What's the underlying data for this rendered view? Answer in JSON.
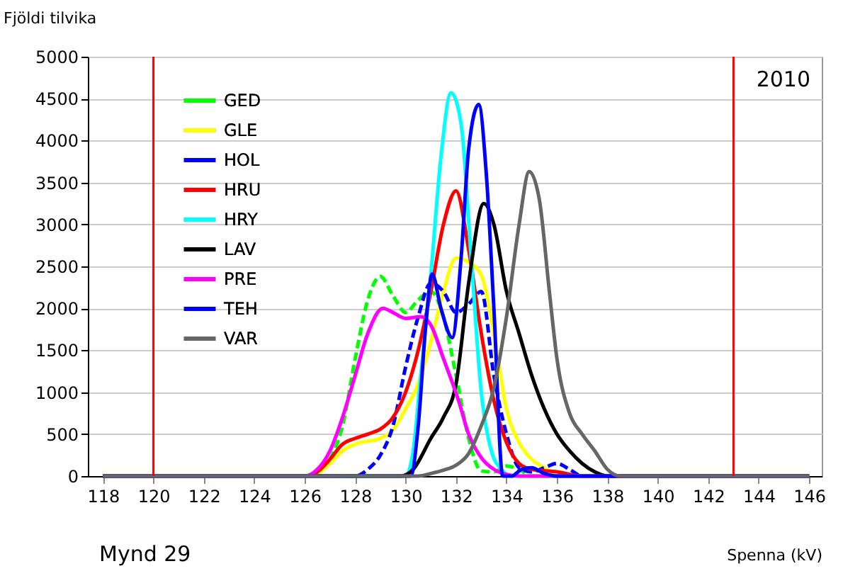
{
  "chart_data": {
    "type": "line",
    "xlabel": "Spenna (kV)",
    "ylabel": "Fjöldi tilvika",
    "xlim": [
      117.4,
      146.5
    ],
    "xticks": [
      118,
      120,
      122,
      124,
      126,
      128,
      130,
      132,
      134,
      136,
      138,
      140,
      142,
      144,
      146
    ],
    "ylim": [
      0,
      5000
    ],
    "yticks": [
      0,
      500,
      1000,
      1500,
      2000,
      2500,
      3000,
      3500,
      4000,
      4500,
      5000
    ],
    "grid": "y",
    "legend": "top left",
    "annotations": [
      "2010",
      "Mynd 29"
    ],
    "ref_lines": [
      {
        "axis": "x",
        "value": 120,
        "color": "#ff0000"
      },
      {
        "axis": "x",
        "value": 143,
        "color": "#ff0000"
      }
    ],
    "series": [
      {
        "name": "GED",
        "color": "#00ff00",
        "line_style": "dashed",
        "x": [
          127,
          127.5,
          128,
          128.5,
          129,
          129.5,
          130,
          130.5,
          131,
          131.5,
          132,
          132.5,
          133,
          133.5,
          134,
          134.5,
          135,
          146
        ],
        "values": [
          200,
          600,
          1400,
          2100,
          2380,
          2150,
          1950,
          2100,
          2200,
          1900,
          1200,
          450,
          60,
          50,
          120,
          80,
          0,
          0
        ]
      },
      {
        "name": "GLE",
        "color": "#ffff00",
        "line_style": "solid",
        "x": [
          118,
          126,
          126.5,
          127,
          127.5,
          128,
          129,
          129.5,
          130,
          130.5,
          131,
          131.5,
          132,
          132.5,
          133,
          133.5,
          134,
          134.5,
          135,
          135.5,
          136,
          146
        ],
        "values": [
          0,
          0,
          30,
          150,
          300,
          380,
          450,
          550,
          800,
          1100,
          1600,
          2200,
          2600,
          2550,
          2400,
          1700,
          800,
          400,
          200,
          100,
          0,
          0
        ]
      },
      {
        "name": "HOL",
        "color": "#0000ff",
        "line_style": "dashed",
        "x": [
          118,
          128,
          128.5,
          129,
          129.5,
          130,
          130.5,
          131,
          131.5,
          132,
          132.5,
          133,
          133.5,
          134,
          134.5,
          135,
          135.5,
          136,
          136.5,
          137,
          146
        ],
        "values": [
          0,
          0,
          80,
          250,
          600,
          1300,
          1900,
          2300,
          2200,
          1950,
          2050,
          2200,
          1200,
          500,
          100,
          50,
          100,
          150,
          80,
          0,
          0
        ]
      },
      {
        "name": "HRU",
        "color": "#ff0000",
        "line_style": "solid",
        "x": [
          118,
          126,
          126.5,
          127,
          127.5,
          128,
          128.5,
          129,
          129.5,
          130,
          130.5,
          131,
          131.5,
          132,
          132.5,
          133,
          133.5,
          134,
          134.5,
          135,
          136,
          137,
          146
        ],
        "values": [
          0,
          0,
          50,
          200,
          380,
          450,
          500,
          560,
          700,
          1000,
          1500,
          2200,
          3000,
          3400,
          2700,
          1700,
          900,
          400,
          150,
          80,
          50,
          0,
          0
        ]
      },
      {
        "name": "HRY",
        "color": "#00ffff",
        "line_style": "solid",
        "x": [
          118,
          130,
          130.3,
          130.6,
          131,
          131.4,
          131.8,
          132.2,
          132.6,
          133,
          133.4,
          133.8,
          134.2,
          146
        ],
        "values": [
          0,
          0,
          300,
          1200,
          2400,
          3800,
          4570,
          4200,
          2600,
          1000,
          300,
          80,
          0,
          0
        ]
      },
      {
        "name": "LAV",
        "color": "#000000",
        "line_style": "solid",
        "x": [
          118,
          129.8,
          130.3,
          131,
          131.5,
          132,
          132.5,
          133.1,
          133.5,
          134,
          134.5,
          135,
          135.5,
          136,
          136.5,
          137,
          137.5,
          138,
          146
        ],
        "values": [
          0,
          0,
          80,
          450,
          700,
          1100,
          2300,
          3250,
          3000,
          2200,
          1700,
          1200,
          800,
          500,
          300,
          150,
          50,
          0,
          0
        ]
      },
      {
        "name": "PRE",
        "color": "#ff00ff",
        "line_style": "solid",
        "x": [
          118,
          126,
          126.5,
          127,
          127.5,
          128,
          128.5,
          129.1,
          129.5,
          130,
          130.6,
          131,
          131.5,
          132.1,
          132.5,
          133,
          133.5,
          134,
          134.5,
          146
        ],
        "values": [
          0,
          0,
          80,
          300,
          700,
          1200,
          1700,
          2000,
          1950,
          1880,
          1900,
          1800,
          1400,
          900,
          500,
          220,
          80,
          20,
          0,
          0
        ]
      },
      {
        "name": "TEH",
        "color": "#0000ff",
        "line_style": "solid",
        "x": [
          118,
          130.2,
          130.5,
          130.8,
          131.05,
          131.4,
          131.85,
          132.2,
          132.5,
          132.9,
          133.2,
          133.5,
          133.85,
          134.2,
          134.6,
          135,
          135.5,
          136,
          146
        ],
        "values": [
          0,
          0,
          600,
          1800,
          2410,
          2000,
          1650,
          2600,
          3900,
          4430,
          3600,
          2000,
          0,
          0,
          80,
          100,
          30,
          0,
          0
        ]
      },
      {
        "name": "VAR",
        "color": "#666666",
        "line_style": "solid",
        "x": [
          118,
          130.5,
          131,
          131.5,
          132,
          132.5,
          133,
          133.5,
          134,
          134.5,
          134.9,
          135.3,
          135.7,
          136,
          136.5,
          137,
          137.5,
          138,
          138.5,
          146
        ],
        "values": [
          0,
          0,
          30,
          70,
          130,
          270,
          600,
          1050,
          1900,
          3000,
          3630,
          3300,
          2200,
          1400,
          750,
          500,
          300,
          80,
          0,
          0
        ]
      }
    ]
  }
}
